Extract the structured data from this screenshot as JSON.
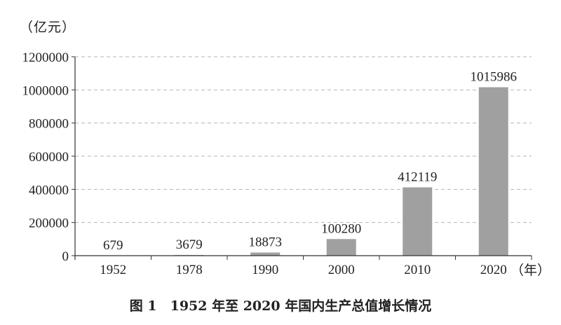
{
  "chart_data": {
    "type": "bar",
    "title": "图 1　1952 年至 2020 年国内生产总值增长情况",
    "ylabel": "（亿元）",
    "xlabel": "（年）",
    "categories": [
      "1952",
      "1978",
      "1990",
      "2000",
      "2010",
      "2020"
    ],
    "values": [
      679,
      3679,
      18873,
      100280,
      412119,
      1015986
    ],
    "data_labels": [
      "679",
      "3679",
      "18873",
      "100280",
      "412119",
      "1015986"
    ],
    "ylim": [
      0,
      1200000
    ],
    "yticks": [
      0,
      200000,
      400000,
      600000,
      800000,
      1000000,
      1200000
    ],
    "ytick_labels": [
      "0",
      "200000",
      "400000",
      "600000",
      "800000",
      "1000000",
      "1200000"
    ],
    "grid": true,
    "bar_color": "#a0a0a0"
  }
}
